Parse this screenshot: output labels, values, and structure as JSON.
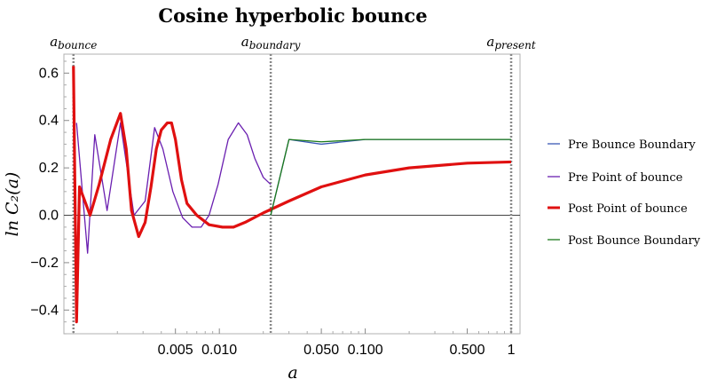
{
  "chart_data": {
    "type": "line",
    "title": "Cosine hyperbolic bounce",
    "xlabel": "a",
    "ylabel": "ln C₂(a)",
    "xscale": "log",
    "xlim": [
      0.00086,
      1.15
    ],
    "ylim": [
      -0.5,
      0.68
    ],
    "x_ticks": [
      {
        "value": 0.005,
        "label": "0.005"
      },
      {
        "value": 0.01,
        "label": "0.010"
      },
      {
        "value": 0.05,
        "label": "0.050"
      },
      {
        "value": 0.1,
        "label": "0.100"
      },
      {
        "value": 0.5,
        "label": "0.500"
      },
      {
        "value": 1,
        "label": "1"
      }
    ],
    "y_ticks": [
      {
        "value": 0.6,
        "label": "0.6"
      },
      {
        "value": 0.4,
        "label": "0.4"
      },
      {
        "value": 0.2,
        "label": "0.2"
      },
      {
        "value": 0.0,
        "label": "0.0"
      },
      {
        "value": -0.2,
        "label": "−0.2"
      },
      {
        "value": -0.4,
        "label": "−0.4"
      }
    ],
    "vertical_lines": [
      {
        "x": 0.001,
        "label_base": "a",
        "label_sub": "bounce"
      },
      {
        "x": 0.0225,
        "label_base": "a",
        "label_sub": "boundary"
      },
      {
        "x": 1.0,
        "label_base": "a",
        "label_sub": "present"
      }
    ],
    "legend_position": "right",
    "series": [
      {
        "name": "Pre Bounce Boundary",
        "color": "#3a59b5",
        "x": [
          0.0225,
          0.03,
          0.05,
          0.1,
          0.2,
          0.5,
          1.0
        ],
        "y": [
          0.0,
          0.32,
          0.3,
          0.32,
          0.32,
          0.32,
          0.32
        ]
      },
      {
        "name": "Pre Point of bounce",
        "color": "#6a1fb0",
        "x": [
          0.00105,
          0.00125,
          0.0014,
          0.0017,
          0.0021,
          0.0026,
          0.0031,
          0.0036,
          0.0041,
          0.0048,
          0.0056,
          0.0065,
          0.0075,
          0.0085,
          0.0098,
          0.0115,
          0.0135,
          0.0155,
          0.0175,
          0.02,
          0.0225
        ],
        "y": [
          0.39,
          -0.16,
          0.34,
          0.02,
          0.39,
          0.0,
          0.06,
          0.37,
          0.28,
          0.1,
          -0.01,
          -0.05,
          -0.05,
          0.0,
          0.13,
          0.32,
          0.39,
          0.34,
          0.24,
          0.16,
          0.13
        ]
      },
      {
        "name": "Post Point of bounce",
        "color": "#e01010",
        "x": [
          0.001,
          0.00105,
          0.0011,
          0.00118,
          0.0013,
          0.0015,
          0.0018,
          0.0021,
          0.0023,
          0.0025,
          0.0028,
          0.0031,
          0.0034,
          0.0037,
          0.004,
          0.0044,
          0.0047,
          0.005,
          0.0055,
          0.006,
          0.007,
          0.0085,
          0.0105,
          0.0125,
          0.015,
          0.02,
          0.03,
          0.05,
          0.1,
          0.2,
          0.5,
          1.0
        ],
        "y": [
          0.63,
          -0.45,
          0.12,
          0.07,
          0.0,
          0.13,
          0.32,
          0.43,
          0.28,
          0.02,
          -0.09,
          -0.03,
          0.12,
          0.28,
          0.36,
          0.39,
          0.39,
          0.32,
          0.15,
          0.05,
          0.0,
          -0.04,
          -0.05,
          -0.05,
          -0.03,
          0.01,
          0.06,
          0.12,
          0.17,
          0.2,
          0.22,
          0.225
        ]
      },
      {
        "name": "Post Bounce Boundary",
        "color": "#1b7a1b",
        "x": [
          0.0225,
          0.03,
          0.05,
          0.1,
          0.2,
          0.5,
          1.0
        ],
        "y": [
          0.0,
          0.32,
          0.31,
          0.32,
          0.32,
          0.32,
          0.32
        ]
      }
    ]
  }
}
